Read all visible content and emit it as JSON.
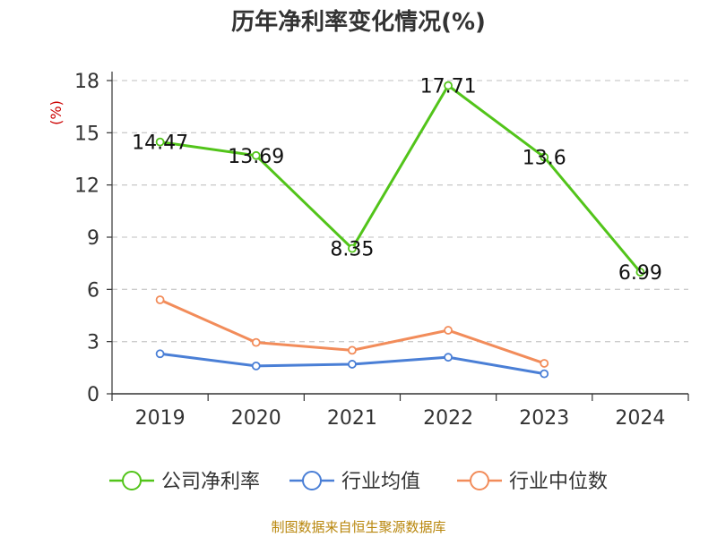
{
  "chart_data": {
    "type": "line",
    "title": "历年净利率变化情况(%)",
    "ylabel": "(%)",
    "categories": [
      "2019",
      "2020",
      "2021",
      "2022",
      "2023",
      "2024"
    ],
    "ylim": [
      0,
      18
    ],
    "yticks": [
      "0",
      "3",
      "6",
      "9",
      "12",
      "15",
      "18"
    ],
    "grid": true,
    "legend_position": "bottom",
    "series": [
      {
        "name": "公司净利率",
        "color": "#52c41a",
        "values": [
          14.47,
          13.69,
          8.35,
          17.71,
          13.6,
          6.99
        ],
        "labels": [
          "14.47",
          "13.69",
          "8.35",
          "17.71",
          "13.6",
          "6.99"
        ]
      },
      {
        "name": "行业均值",
        "color": "#4a7fd6",
        "values": [
          2.3,
          1.6,
          1.7,
          2.1,
          1.15,
          null
        ]
      },
      {
        "name": "行业中位数",
        "color": "#f28c5a",
        "values": [
          5.4,
          2.95,
          2.5,
          3.65,
          1.75,
          null
        ]
      }
    ]
  },
  "colors": {
    "unit_label": "#cc0000",
    "footer": "#b8860b",
    "grid": "#cccccc",
    "axis": "#333333"
  },
  "footer": "制图数据来自恒生聚源数据库"
}
